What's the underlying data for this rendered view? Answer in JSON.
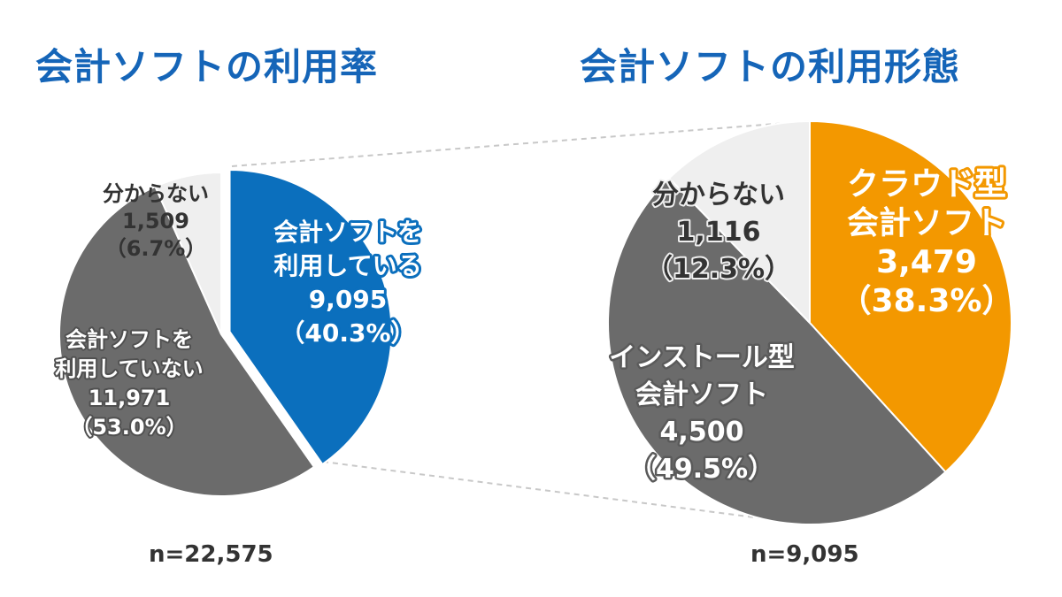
{
  "chart_data": [
    {
      "type": "pie",
      "title": "会計ソフトの利用率",
      "note": "n=22,575",
      "slices": [
        {
          "name_lines": [
            "会計ソフトを",
            "利用している"
          ],
          "value": 9095,
          "value_label": "9,095",
          "percent_label": "（40.3%）",
          "percent": 40.3,
          "color": "#0b6fbd",
          "exploded": true
        },
        {
          "name_lines": [
            "会計ソフトを",
            "利用していない"
          ],
          "value": 11971,
          "value_label": "11,971",
          "percent_label": "（53.0%）",
          "percent": 53.0,
          "color": "#6b6b6b"
        },
        {
          "name_lines": [
            "分からない"
          ],
          "value": 1509,
          "value_label": "1,509",
          "percent_label": "（6.7%）",
          "percent": 6.7,
          "color": "#efefef"
        }
      ]
    },
    {
      "type": "pie",
      "title": "会計ソフトの利用形態",
      "note": "n=9,095",
      "slices": [
        {
          "name_lines": [
            "クラウド型",
            "会計ソフト"
          ],
          "value": 3479,
          "value_label": "3,479",
          "percent_label": "（38.3%）",
          "percent": 38.3,
          "color": "#f39800"
        },
        {
          "name_lines": [
            "インストール型",
            "会計ソフト"
          ],
          "value": 4500,
          "value_label": "4,500",
          "percent_label": "（49.5%）",
          "percent": 49.5,
          "color": "#6b6b6b"
        },
        {
          "name_lines": [
            "分からない"
          ],
          "value": 1116,
          "value_label": "1,116",
          "percent_label": "（12.3%）",
          "percent": 12.3,
          "color": "#efefef"
        }
      ]
    }
  ]
}
